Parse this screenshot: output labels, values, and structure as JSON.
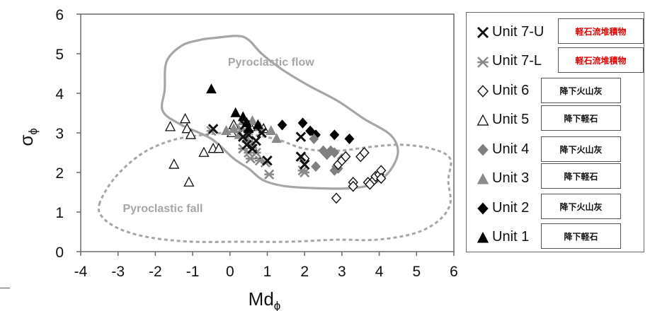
{
  "chart_data": {
    "type": "scatter",
    "xlabel": "Md",
    "xlabel_sub": "ϕ",
    "ylabel": "σ",
    "ylabel_sub": "ϕ",
    "xlim": [
      -4,
      6
    ],
    "ylim": [
      0,
      6
    ],
    "xticks": [
      "-4",
      "-3",
      "-2",
      "-1",
      "0",
      "1",
      "2",
      "3",
      "4",
      "5",
      "6"
    ],
    "yticks": [
      "0",
      "1",
      "2",
      "3",
      "4",
      "5",
      "6"
    ],
    "grid": false,
    "legend_position": "right",
    "fields": [
      {
        "name": "Pyroclastic flow",
        "color": "#a6a6a6",
        "outline": [
          [
            -1.75,
            4.1
          ],
          [
            -1.7,
            4.8
          ],
          [
            -1.3,
            5.2
          ],
          [
            -0.8,
            5.35
          ],
          [
            -0.4,
            5.4
          ],
          [
            0.2,
            5.45
          ],
          [
            0.5,
            5.35
          ],
          [
            0.85,
            5.0
          ],
          [
            1.4,
            4.6
          ],
          [
            2.1,
            4.2
          ],
          [
            2.9,
            3.8
          ],
          [
            3.6,
            3.35
          ],
          [
            4.3,
            2.95
          ],
          [
            4.5,
            2.5
          ],
          [
            4.25,
            2.0
          ],
          [
            3.8,
            1.7
          ],
          [
            3.2,
            1.6
          ],
          [
            2.4,
            1.6
          ],
          [
            1.5,
            1.65
          ],
          [
            0.9,
            1.8
          ],
          [
            0.5,
            2.1
          ],
          [
            0.1,
            2.35
          ],
          [
            -0.5,
            2.85
          ],
          [
            -1.3,
            3.2
          ],
          [
            -1.8,
            3.55
          ]
        ],
        "label_at": [
          1.1,
          4.7
        ]
      },
      {
        "name": "Pyroclastic fall",
        "color": "#a6a6a6",
        "outline": [
          [
            -3.5,
            1.2
          ],
          [
            -3.1,
            1.85
          ],
          [
            -2.4,
            2.45
          ],
          [
            -1.6,
            2.8
          ],
          [
            -0.7,
            2.95
          ],
          [
            0.2,
            3.0
          ],
          [
            1.2,
            2.85
          ],
          [
            2.0,
            2.6
          ],
          [
            2.9,
            2.55
          ],
          [
            3.8,
            2.65
          ],
          [
            4.6,
            2.7
          ],
          [
            5.4,
            2.6
          ],
          [
            5.9,
            2.35
          ],
          [
            5.85,
            1.8
          ],
          [
            5.9,
            1.2
          ],
          [
            5.55,
            0.75
          ],
          [
            4.9,
            0.45
          ],
          [
            3.9,
            0.3
          ],
          [
            2.8,
            0.3
          ],
          [
            1.6,
            0.25
          ],
          [
            0.2,
            0.25
          ],
          [
            -1.0,
            0.25
          ],
          [
            -2.1,
            0.35
          ],
          [
            -2.9,
            0.55
          ],
          [
            -3.4,
            0.85
          ]
        ],
        "label_at": [
          -1.8,
          1.0
        ]
      }
    ],
    "series": [
      {
        "name": "Unit 7-U",
        "marker": "x",
        "color": "#111111",
        "points": [
          [
            -0.45,
            3.1
          ],
          [
            0.4,
            3.2
          ],
          [
            0.35,
            2.9
          ],
          [
            0.5,
            2.95
          ],
          [
            0.7,
            2.8
          ],
          [
            0.85,
            3.0
          ],
          [
            0.45,
            2.7
          ],
          [
            1.9,
            2.9
          ],
          [
            1.9,
            2.4
          ],
          [
            2.0,
            2.2
          ],
          [
            1.0,
            2.3
          ],
          [
            0.6,
            2.6
          ]
        ]
      },
      {
        "name": "Unit 7-L",
        "marker": "asterisk",
        "color": "#8a8a8a",
        "points": [
          [
            -0.5,
            3.05
          ],
          [
            0.3,
            3.1
          ],
          [
            0.35,
            2.6
          ],
          [
            0.5,
            2.5
          ],
          [
            0.55,
            2.35
          ],
          [
            0.7,
            2.5
          ],
          [
            0.8,
            2.3
          ],
          [
            0.95,
            2.25
          ],
          [
            1.05,
            1.95
          ],
          [
            1.95,
            2.05
          ],
          [
            2.0,
            2.0
          ]
        ]
      },
      {
        "name": "Unit 6",
        "marker": "diamond-open",
        "color": "#111111",
        "points": [
          [
            2.0,
            2.35
          ],
          [
            2.9,
            2.2
          ],
          [
            3.0,
            2.3
          ],
          [
            3.1,
            2.4
          ],
          [
            3.5,
            2.4
          ],
          [
            3.3,
            1.75
          ],
          [
            3.3,
            1.65
          ],
          [
            3.7,
            1.75
          ],
          [
            3.85,
            1.8
          ],
          [
            3.9,
            1.9
          ],
          [
            4.0,
            1.95
          ],
          [
            4.05,
            2.05
          ],
          [
            4.05,
            1.85
          ],
          [
            2.85,
            1.35
          ],
          [
            3.6,
            2.5
          ],
          [
            3.75,
            1.7
          ]
        ]
      },
      {
        "name": "Unit 5",
        "marker": "triangle-open",
        "color": "#111111",
        "points": [
          [
            -1.6,
            3.15
          ],
          [
            -1.2,
            3.35
          ],
          [
            -1.15,
            3.1
          ],
          [
            -1.05,
            2.95
          ],
          [
            -1.5,
            2.2
          ],
          [
            -1.1,
            1.75
          ],
          [
            -0.7,
            2.5
          ],
          [
            -0.45,
            2.6
          ],
          [
            -0.3,
            2.6
          ],
          [
            0.05,
            3.0
          ],
          [
            0.1,
            3.2
          ],
          [
            0.35,
            3.0
          ],
          [
            0.55,
            3.15
          ],
          [
            0.9,
            3.1
          ],
          [
            0.7,
            2.45
          ]
        ]
      },
      {
        "name": "Unit 4",
        "marker": "diamond",
        "color": "#7f7f7f",
        "points": [
          [
            2.25,
            2.85
          ],
          [
            2.5,
            2.55
          ],
          [
            2.6,
            2.45
          ],
          [
            2.7,
            2.55
          ],
          [
            2.8,
            2.5
          ],
          [
            2.85,
            2.15
          ],
          [
            2.9,
            2.1
          ],
          [
            2.3,
            2.15
          ],
          [
            3.0,
            2.35
          ],
          [
            2.95,
            2.25
          ],
          [
            2.8,
            2.05
          ]
        ]
      },
      {
        "name": "Unit 3",
        "marker": "triangle",
        "color": "#8a8a8a",
        "points": [
          [
            -0.1,
            3.05
          ],
          [
            0.1,
            3.1
          ],
          [
            0.35,
            3.3
          ],
          [
            0.6,
            3.3
          ],
          [
            0.8,
            3.15
          ],
          [
            1.1,
            3.05
          ],
          [
            1.25,
            2.85
          ],
          [
            0.45,
            2.85
          ],
          [
            0.6,
            2.7
          ],
          [
            0.25,
            2.95
          ]
        ]
      },
      {
        "name": "Unit 2",
        "marker": "diamond-solid",
        "color": "#000000",
        "points": [
          [
            1.4,
            3.2
          ],
          [
            1.95,
            3.25
          ],
          [
            2.15,
            3.05
          ],
          [
            2.3,
            2.95
          ],
          [
            2.8,
            2.95
          ],
          [
            3.2,
            2.85
          ]
        ]
      },
      {
        "name": "Unit 1",
        "marker": "triangle-solid",
        "color": "#000000",
        "points": [
          [
            -0.5,
            4.1
          ],
          [
            0.15,
            3.5
          ],
          [
            0.35,
            3.4
          ],
          [
            0.45,
            3.25
          ],
          [
            0.75,
            3.2
          ],
          [
            0.5,
            3.1
          ]
        ]
      }
    ]
  },
  "legend": {
    "items": [
      {
        "label": "Unit 7-U",
        "note": "軽石流堆積物",
        "note_color": "red"
      },
      {
        "label": "Unit 7-L",
        "note": "軽石流堆積物",
        "note_color": "red"
      },
      {
        "label": "Unit 6",
        "note": "降下火山灰",
        "note_color": "black"
      },
      {
        "label": "Unit 5",
        "note": "降下軽石",
        "note_color": "black"
      },
      {
        "label": "Unit 4",
        "note": "降下火山灰",
        "note_color": "black"
      },
      {
        "label": "Unit 3",
        "note": "降下軽石",
        "note_color": "black"
      },
      {
        "label": "Unit 2",
        "note": "降下火山灰",
        "note_color": "black"
      },
      {
        "label": "Unit 1",
        "note": "降下軽石",
        "note_color": "black"
      }
    ]
  }
}
